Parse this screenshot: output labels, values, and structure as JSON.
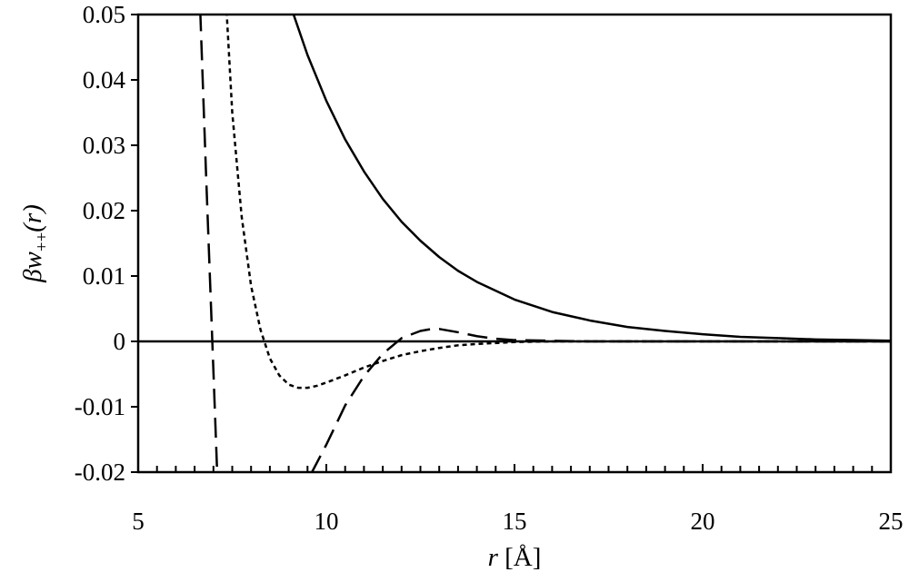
{
  "chart_data": {
    "type": "line",
    "xlabel": {
      "var": "r",
      "unit": " [Å]"
    },
    "ylabel": {
      "main": "βw",
      "sub": "++",
      "tail": "(r)"
    },
    "xlim": [
      5,
      25
    ],
    "ylim": [
      -0.02,
      0.05
    ],
    "x_ticks": [
      5,
      10,
      15,
      20,
      25
    ],
    "x_tick_labels": [
      "5",
      "10",
      "15",
      "20",
      "25"
    ],
    "y_ticks": [
      -0.02,
      -0.01,
      0,
      0.01,
      0.02,
      0.03,
      0.04,
      0.05
    ],
    "y_tick_labels": [
      "-0.02",
      "-0.01",
      "0",
      "0.01",
      "0.02",
      "0.03",
      "0.04",
      "0.05"
    ],
    "x_minor_step": 0.5,
    "grid": false,
    "legend": "none",
    "series": [
      {
        "style": "solid",
        "x": [
          9.1,
          9.5,
          10,
          10.5,
          11,
          11.5,
          12,
          12.5,
          13,
          13.5,
          14,
          15,
          16,
          17,
          18,
          19,
          20,
          21,
          22,
          23,
          24,
          25
        ],
        "y": [
          0.0505,
          0.0438,
          0.0368,
          0.0309,
          0.026,
          0.0218,
          0.0183,
          0.0154,
          0.0129,
          0.0108,
          0.0091,
          0.0064,
          0.0045,
          0.0032,
          0.0022,
          0.0016,
          0.0011,
          0.0007,
          0.0005,
          0.0003,
          0.0002,
          0.0001
        ]
      },
      {
        "style": "dotted",
        "x": [
          7.35,
          7.5,
          7.75,
          8.0,
          8.25,
          8.5,
          8.75,
          9.0,
          9.25,
          9.5,
          9.75,
          10.0,
          10.5,
          11.0,
          11.5,
          12.0,
          12.5,
          13.0,
          13.5,
          14.0,
          15.0,
          16.0,
          17.0,
          18.0,
          20.0,
          22.0,
          25.0
        ],
        "y": [
          0.0505,
          0.035,
          0.0191,
          0.0085,
          0.0018,
          -0.0026,
          -0.0052,
          -0.0066,
          -0.0071,
          -0.0071,
          -0.0068,
          -0.0063,
          -0.0052,
          -0.004,
          -0.003,
          -0.0021,
          -0.0015,
          -0.001,
          -0.0006,
          -0.0004,
          -0.0001,
          0.0,
          0.0,
          0.0,
          0.0,
          0.0,
          0.0
        ]
      },
      {
        "style": "dashed",
        "x": [
          6.65,
          6.8,
          7.0,
          7.1
        ],
        "y": [
          0.0505,
          0.0262,
          -0.0046,
          -0.0202
        ]
      },
      {
        "style": "dashed",
        "x": [
          9.6,
          10.0,
          10.5,
          11.0,
          11.5,
          12.0,
          12.5,
          12.8,
          13.0,
          13.5,
          14.0,
          14.5,
          15.0,
          16.0,
          17.0,
          18.0,
          20.0,
          22.0,
          25.0
        ],
        "y": [
          -0.0202,
          -0.0158,
          -0.0098,
          -0.0053,
          -0.0019,
          0.0005,
          0.0016,
          0.0019,
          0.0019,
          0.0014,
          0.0008,
          0.0004,
          0.0002,
          0.0001,
          0.0,
          0.0,
          0.0,
          0.0,
          0.0
        ]
      }
    ]
  }
}
